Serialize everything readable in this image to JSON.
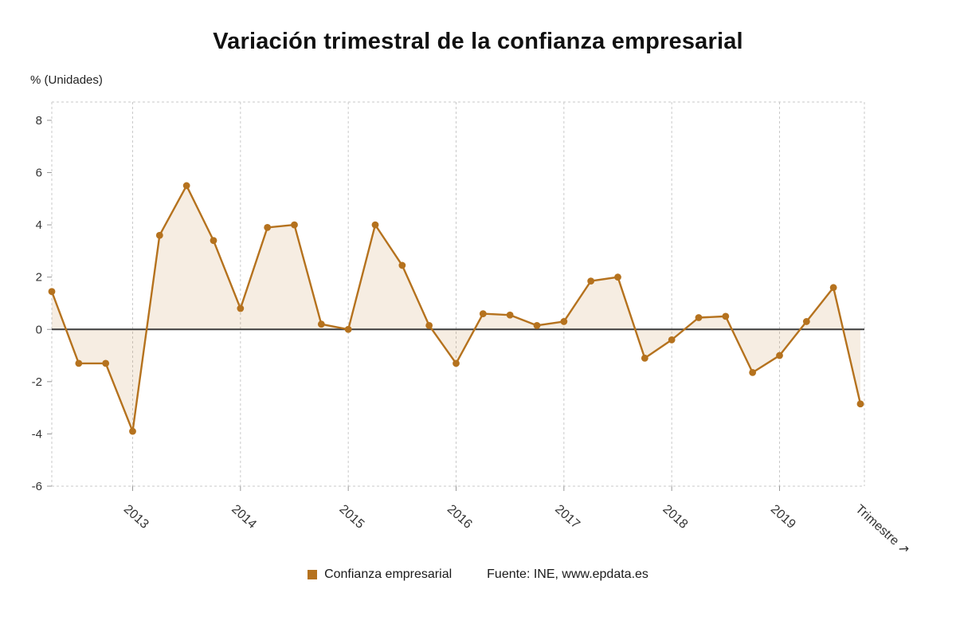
{
  "page": {
    "background": "#ffffff"
  },
  "chart_data": {
    "type": "line",
    "title": "Variación trimestral de la confianza empresarial",
    "ylabel": "% (Unidades)",
    "xlabel": "Trimestre ↗",
    "legend": "Confianza empresarial",
    "source": "Fuente: INE, www.epdata.es",
    "line_color": "#b5721e",
    "marker_color": "#b5721e",
    "area_fill": "rgba(182,116,33,0.13)",
    "zero_line_color": "#3c3c3c",
    "grid_color": "#c9c9c9",
    "values": [
      1.45,
      -1.3,
      -1.3,
      -3.9,
      3.6,
      5.5,
      3.4,
      0.8,
      3.9,
      4.0,
      0.2,
      0.0,
      4.0,
      2.45,
      0.15,
      -1.3,
      0.6,
      0.55,
      0.15,
      0.3,
      1.85,
      2.0,
      -1.1,
      -0.4,
      0.45,
      0.5,
      -1.65,
      -1.0,
      0.3,
      1.6,
      -2.85
    ],
    "yticks": [
      8,
      6,
      4,
      2,
      0,
      -2,
      -4,
      -6
    ],
    "ylim": [
      -6,
      8.7
    ],
    "x_tick_labels": [
      "2013",
      "2014",
      "2015",
      "2016",
      "2017",
      "2018",
      "2019"
    ],
    "x_tick_indices": [
      3,
      7,
      11,
      15,
      19,
      23,
      27
    ],
    "grid": "dashed vertical lines at year ticks, dashed plot border, no horizontal gridlines",
    "legend_position": "bottom-center"
  }
}
